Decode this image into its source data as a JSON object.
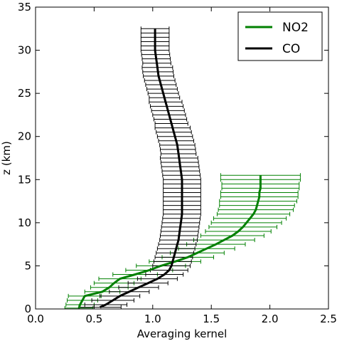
{
  "chart_data": {
    "type": "line",
    "title": "",
    "xlabel": "Averaging kernel",
    "ylabel": "z (km)",
    "xlim": [
      0,
      2.5
    ],
    "ylim": [
      0,
      35
    ],
    "x_ticks": [
      "0.0",
      "0.5",
      "1.0",
      "1.5",
      "2.0",
      "2.5"
    ],
    "y_ticks": [
      "0",
      "5",
      "10",
      "15",
      "20",
      "25",
      "30",
      "35"
    ],
    "grid": false,
    "legend_position": "top-right",
    "series": [
      {
        "name": "NO2",
        "color": "#008000",
        "y": [
          0.1,
          0.5,
          1,
          1.5,
          2,
          2.5,
          3,
          3.5,
          4,
          4.5,
          5,
          5.5,
          6,
          6.5,
          7,
          7.5,
          8,
          8.5,
          9,
          9.5,
          10,
          10.5,
          11,
          11.5,
          12,
          12.5,
          13,
          13.5,
          14,
          14.5,
          15,
          15.5
        ],
        "x": [
          0.37,
          0.38,
          0.4,
          0.42,
          0.57,
          0.63,
          0.67,
          0.72,
          0.85,
          0.97,
          1.07,
          1.19,
          1.3,
          1.38,
          1.46,
          1.54,
          1.61,
          1.68,
          1.73,
          1.77,
          1.8,
          1.83,
          1.86,
          1.88,
          1.89,
          1.9,
          1.91,
          1.91,
          1.92,
          1.92,
          1.92,
          1.92
        ],
        "x_err": [
          0.12,
          0.12,
          0.13,
          0.14,
          0.15,
          0.16,
          0.17,
          0.18,
          0.19,
          0.2,
          0.21,
          0.22,
          0.22,
          0.23,
          0.24,
          0.25,
          0.26,
          0.27,
          0.28,
          0.29,
          0.3,
          0.31,
          0.31,
          0.32,
          0.32,
          0.33,
          0.33,
          0.33,
          0.33,
          0.33,
          0.34,
          0.34
        ]
      },
      {
        "name": "CO",
        "color": "#000000",
        "y": [
          0.2,
          0.5,
          1,
          1.5,
          2,
          2.5,
          3,
          3.5,
          4,
          4.5,
          5,
          5.5,
          6,
          6.5,
          7,
          7.5,
          8,
          8.5,
          9,
          9.5,
          10,
          10.5,
          11,
          11.5,
          12,
          12.5,
          13,
          13.5,
          14,
          14.5,
          15,
          15.5,
          16,
          16.5,
          17,
          17.5,
          18,
          18.5,
          19,
          19.5,
          20,
          20.5,
          21,
          21.5,
          22,
          22.5,
          23,
          23.5,
          24,
          24.5,
          25,
          25.5,
          26,
          26.5,
          27,
          27.5,
          28,
          28.5,
          29,
          29.5,
          30,
          30.5,
          31,
          31.5,
          32,
          32.5
        ],
        "x": [
          0.55,
          0.6,
          0.66,
          0.72,
          0.8,
          0.88,
          0.96,
          1.04,
          1.1,
          1.14,
          1.16,
          1.17,
          1.18,
          1.19,
          1.2,
          1.21,
          1.22,
          1.225,
          1.23,
          1.235,
          1.24,
          1.245,
          1.25,
          1.25,
          1.25,
          1.25,
          1.25,
          1.25,
          1.25,
          1.25,
          1.25,
          1.245,
          1.24,
          1.235,
          1.23,
          1.225,
          1.22,
          1.215,
          1.21,
          1.2,
          1.19,
          1.18,
          1.17,
          1.16,
          1.15,
          1.14,
          1.13,
          1.12,
          1.11,
          1.1,
          1.09,
          1.08,
          1.07,
          1.06,
          1.05,
          1.045,
          1.04,
          1.035,
          1.03,
          1.025,
          1.02,
          1.02,
          1.02,
          1.02,
          1.02,
          1.02
        ],
        "x_err": [
          0.18,
          0.18,
          0.18,
          0.17,
          0.17,
          0.17,
          0.17,
          0.17,
          0.16,
          0.16,
          0.16,
          0.16,
          0.16,
          0.16,
          0.16,
          0.16,
          0.16,
          0.16,
          0.16,
          0.16,
          0.16,
          0.16,
          0.16,
          0.16,
          0.16,
          0.16,
          0.16,
          0.16,
          0.16,
          0.16,
          0.16,
          0.16,
          0.16,
          0.16,
          0.16,
          0.16,
          0.15,
          0.15,
          0.15,
          0.15,
          0.15,
          0.15,
          0.15,
          0.14,
          0.14,
          0.14,
          0.14,
          0.14,
          0.14,
          0.13,
          0.13,
          0.13,
          0.13,
          0.13,
          0.13,
          0.13,
          0.13,
          0.12,
          0.12,
          0.12,
          0.12,
          0.12,
          0.12,
          0.12,
          0.12,
          0.12
        ]
      }
    ]
  }
}
